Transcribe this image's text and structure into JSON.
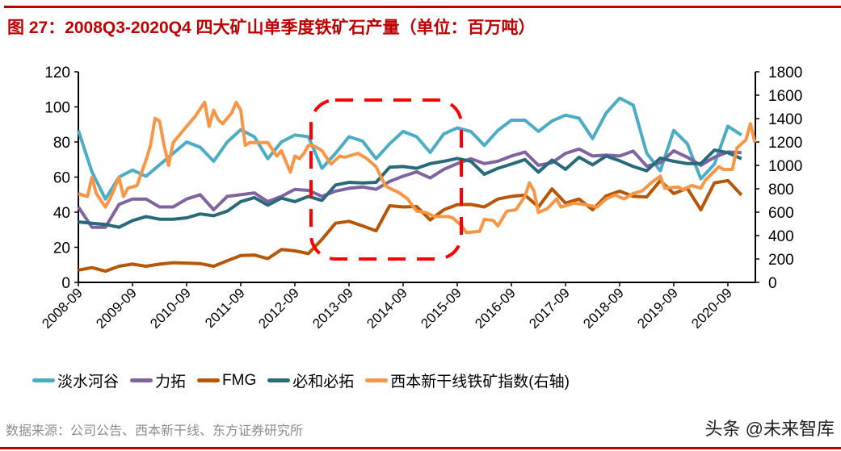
{
  "header": {
    "title": "图 27：2008Q3-2020Q4 四大矿山单季度铁矿石产量（单位：百万吨）"
  },
  "footer": {
    "source": "数据来源：公司公告、西本新干线、东方证券研究所",
    "watermark": "头条 @未来智库"
  },
  "chart_data": {
    "type": "line",
    "title": "图 27：2008Q3-2020Q4 四大矿山单季度铁矿石产量（单位：百万吨）",
    "x_tick_labels": [
      "2008-09",
      "2009-09",
      "2010-09",
      "2011-09",
      "2012-09",
      "2013-09",
      "2014-09",
      "2015-09",
      "2016-09",
      "2017-09",
      "2018-09",
      "2019-09",
      "2020-09"
    ],
    "x_range": [
      "2008Q3",
      "2020Q4"
    ],
    "y_left": {
      "range": [
        0,
        120
      ],
      "ticks": [
        "0",
        "20",
        "40",
        "60",
        "80",
        "100",
        "120"
      ]
    },
    "y_right": {
      "range": [
        0,
        1800
      ],
      "ticks": [
        "0",
        "200",
        "400",
        "600",
        "800",
        "1000",
        "1200",
        "1400",
        "1600",
        "1800"
      ]
    },
    "grid": false,
    "legend": "bottom",
    "highlight_box": {
      "from": "2013Q1",
      "to": "2015Q4",
      "style": "red dashed rounded rectangle"
    },
    "series": [
      {
        "name": "淡水河谷",
        "color": "#4BACC6",
        "axis": "left",
        "values": [
          86.6,
          63,
          47.5,
          60,
          64,
          60.5,
          67,
          73.5,
          80,
          77,
          69,
          80,
          87,
          83,
          70.5,
          80,
          84,
          83,
          65,
          73.5,
          83,
          80.5,
          70.5,
          79,
          86,
          83,
          74,
          84.6,
          88,
          86,
          78,
          86.6,
          92.4,
          92.4,
          86,
          92,
          95.3,
          93.5,
          82,
          96.5,
          105,
          101,
          73.6,
          63.6,
          86.6,
          79,
          59,
          67.4,
          89,
          84
        ]
      },
      {
        "name": "力拓",
        "color": "#8064A2",
        "axis": "left",
        "values": [
          43,
          31.4,
          31.4,
          44.4,
          47.5,
          47.5,
          43,
          43,
          47.5,
          50,
          41.4,
          49,
          50,
          51,
          46,
          49,
          53,
          52.4,
          49,
          52,
          53.6,
          54.4,
          53,
          57.5,
          60.5,
          63,
          59.5,
          64.4,
          67.7,
          70.5,
          67.7,
          69,
          72,
          74.3,
          66.7,
          68.2,
          73.5,
          76,
          72,
          72.5,
          72,
          74.8,
          66.2,
          68.2,
          75,
          71.3,
          66.7,
          71.3,
          74.3,
          73.9
        ]
      },
      {
        "name": "FMG",
        "color": "#B65708",
        "axis": "left",
        "values": [
          7,
          8.4,
          6.4,
          9.2,
          10.4,
          9.2,
          10.4,
          11.2,
          11,
          10.7,
          9.2,
          12.3,
          15.3,
          15.6,
          13.5,
          18.7,
          18,
          16.4,
          24.5,
          33.7,
          34.8,
          32.2,
          29.4,
          43.7,
          43,
          43.2,
          35.6,
          41.4,
          44.3,
          44.4,
          43,
          47.5,
          49,
          49.8,
          43,
          53.3,
          45.2,
          47.5,
          41.4,
          49.3,
          52,
          49,
          48.7,
          58,
          50.6,
          53.6,
          41.4,
          56.7,
          58,
          49.8
        ]
      },
      {
        "name": "必和必拓",
        "color": "#276A7C",
        "axis": "left",
        "values": [
          34.5,
          33.7,
          33,
          31.4,
          35.2,
          37.5,
          36,
          36,
          36.8,
          39,
          38,
          40.6,
          46,
          48.3,
          44,
          48,
          46,
          49,
          46.7,
          55.5,
          57,
          56.7,
          57,
          65.6,
          66,
          65,
          67.7,
          69,
          70.6,
          69,
          61.6,
          65,
          67.4,
          70,
          62.8,
          69.7,
          64.4,
          71.3,
          67,
          72,
          69.3,
          66,
          63.6,
          70.8,
          69,
          67.7,
          67.7,
          75.4,
          73.9,
          70.5
        ]
      },
      {
        "name": "西本新干线铁矿指数(右轴)",
        "color": "#F79646",
        "axis": "right",
        "points": [
          [
            "2008-09",
            758
          ],
          [
            "2008-11",
            735
          ],
          [
            "2008-12",
            897
          ],
          [
            "2009-01",
            758
          ],
          [
            "2009-03",
            644
          ],
          [
            "2009-04",
            713
          ],
          [
            "2009-06",
            897
          ],
          [
            "2009-07",
            735
          ],
          [
            "2009-08",
            805
          ],
          [
            "2009-10",
            828
          ],
          [
            "2009-12",
            1046
          ],
          [
            "2010-01",
            1172
          ],
          [
            "2010-02",
            1402
          ],
          [
            "2010-03",
            1379
          ],
          [
            "2010-04",
            1172
          ],
          [
            "2010-05",
            1000
          ],
          [
            "2010-06",
            1195
          ],
          [
            "2010-07",
            1241
          ],
          [
            "2010-08",
            1287
          ],
          [
            "2010-10",
            1379
          ],
          [
            "2010-11",
            1425
          ],
          [
            "2011-01",
            1540
          ],
          [
            "2011-02",
            1333
          ],
          [
            "2011-03",
            1471
          ],
          [
            "2011-04",
            1391
          ],
          [
            "2011-05",
            1356
          ],
          [
            "2011-07",
            1448
          ],
          [
            "2011-08",
            1540
          ],
          [
            "2011-09",
            1471
          ],
          [
            "2011-10",
            1172
          ],
          [
            "2011-11",
            1195
          ],
          [
            "2012-01",
            1195
          ],
          [
            "2012-03",
            1195
          ],
          [
            "2012-05",
            1080
          ],
          [
            "2012-06",
            1126
          ],
          [
            "2012-08",
            942
          ],
          [
            "2012-09",
            1080
          ],
          [
            "2012-10",
            1057
          ],
          [
            "2012-11",
            1103
          ],
          [
            "2012-12",
            1172
          ],
          [
            "2013-01",
            1172
          ],
          [
            "2013-03",
            1126
          ],
          [
            "2013-05",
            1011
          ],
          [
            "2013-07",
            1080
          ],
          [
            "2013-08",
            1069
          ],
          [
            "2013-11",
            1103
          ],
          [
            "2014-01",
            1057
          ],
          [
            "2014-03",
            988
          ],
          [
            "2014-05",
            828
          ],
          [
            "2014-06",
            805
          ],
          [
            "2014-08",
            770
          ],
          [
            "2014-10",
            713
          ],
          [
            "2014-12",
            609
          ],
          [
            "2015-02",
            598
          ],
          [
            "2015-04",
            563
          ],
          [
            "2015-07",
            563
          ],
          [
            "2015-08",
            552
          ],
          [
            "2015-10",
            483
          ],
          [
            "2015-11",
            425
          ],
          [
            "2016-02",
            437
          ],
          [
            "2016-03",
            540
          ],
          [
            "2016-05",
            529
          ],
          [
            "2016-06",
            483
          ],
          [
            "2016-08",
            609
          ],
          [
            "2016-10",
            621
          ],
          [
            "2016-12",
            736
          ],
          [
            "2017-01",
            851
          ],
          [
            "2017-02",
            782
          ],
          [
            "2017-03",
            598
          ],
          [
            "2017-05",
            632
          ],
          [
            "2017-07",
            713
          ],
          [
            "2017-08",
            644
          ],
          [
            "2017-11",
            678
          ],
          [
            "2018-01",
            667
          ],
          [
            "2018-04",
            644
          ],
          [
            "2018-06",
            713
          ],
          [
            "2018-08",
            747
          ],
          [
            "2018-10",
            713
          ],
          [
            "2018-12",
            759
          ],
          [
            "2019-02",
            782
          ],
          [
            "2019-04",
            851
          ],
          [
            "2019-06",
            908
          ],
          [
            "2019-07",
            805
          ],
          [
            "2019-10",
            816
          ],
          [
            "2019-11",
            793
          ],
          [
            "2020-01",
            828
          ],
          [
            "2020-03",
            805
          ],
          [
            "2020-04",
            874
          ],
          [
            "2020-07",
            989
          ],
          [
            "2020-08",
            966
          ],
          [
            "2020-10",
            966
          ],
          [
            "2020-11",
            1150
          ],
          [
            "2021-01",
            1218
          ],
          [
            "2021-02",
            1356
          ],
          [
            "2021-03",
            1196
          ]
        ]
      }
    ]
  }
}
